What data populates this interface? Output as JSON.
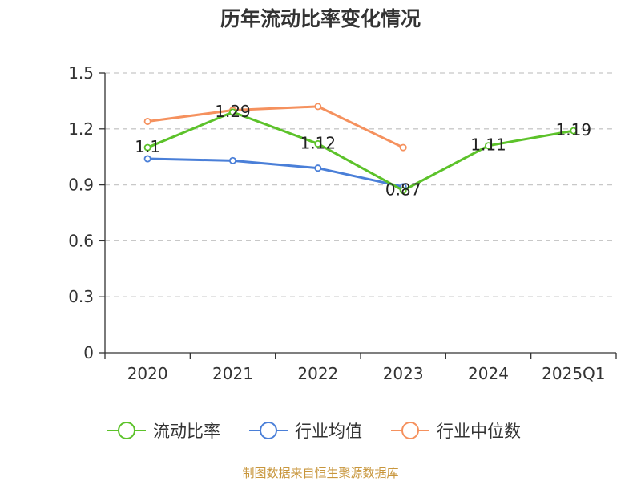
{
  "chart_data": {
    "type": "line",
    "title": "历年流动比率变化情况",
    "categories": [
      "2020",
      "2021",
      "2022",
      "2023",
      "2024",
      "2025Q1"
    ],
    "ylim": [
      0,
      1.5
    ],
    "yticks": [
      "0",
      "0.3",
      "0.6",
      "0.9",
      "1.2",
      "1.5"
    ],
    "ytick_values": [
      0,
      0.3,
      0.6,
      0.9,
      1.2,
      1.5
    ],
    "grid": true,
    "legend_position": "bottom",
    "series": [
      {
        "name": "流动比率",
        "color": "#5cc22a",
        "values": [
          1.1,
          1.29,
          1.12,
          0.87,
          1.11,
          1.19
        ],
        "labels": [
          "1.1",
          "1.29",
          "1.12",
          "0.87",
          "1.11",
          "1.19"
        ]
      },
      {
        "name": "行业均值",
        "color": "#4a7fd8",
        "values": [
          1.04,
          1.03,
          0.99,
          0.89,
          null,
          null
        ]
      },
      {
        "name": "行业中位数",
        "color": "#f5915e",
        "values": [
          1.24,
          1.3,
          1.32,
          1.1,
          null,
          null
        ]
      }
    ]
  },
  "source": "制图数据来自恒生聚源数据库"
}
